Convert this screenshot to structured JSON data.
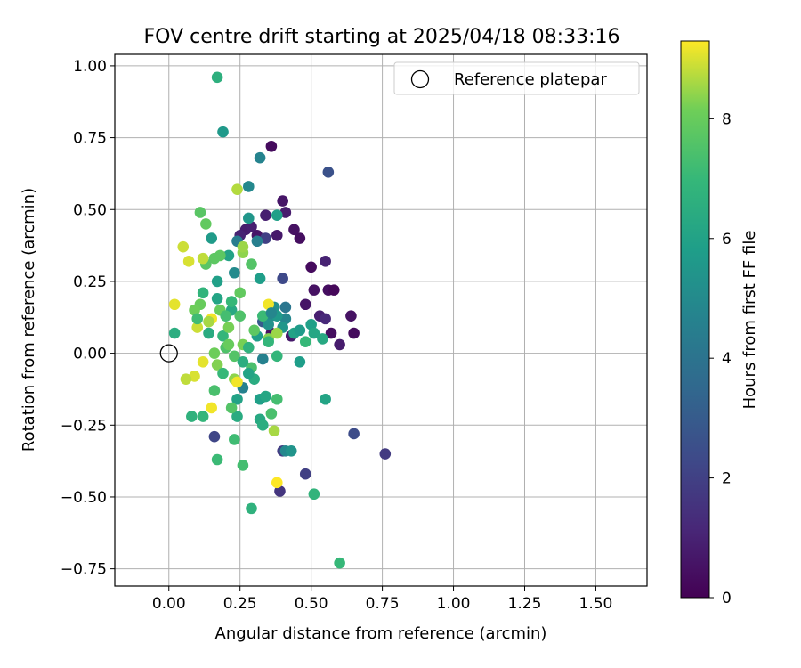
{
  "chart_data": {
    "type": "scatter",
    "title": "FOV centre drift starting at 2025/04/18 08:33:16",
    "xlabel": "Angular distance from reference (arcmin)",
    "ylabel": "Rotation from reference (arcmin)",
    "xlim": [
      -0.19,
      1.68
    ],
    "ylim": [
      -0.81,
      1.04
    ],
    "xticks": [
      0.0,
      0.25,
      0.5,
      0.75,
      1.0,
      1.25,
      1.5
    ],
    "xtick_labels": [
      "0.00",
      "0.25",
      "0.50",
      "0.75",
      "1.00",
      "1.25",
      "1.50"
    ],
    "yticks": [
      -0.75,
      -0.5,
      -0.25,
      0.0,
      0.25,
      0.5,
      0.75,
      1.0
    ],
    "ytick_labels": [
      "−0.75",
      "−0.50",
      "−0.25",
      "0.00",
      "0.25",
      "0.50",
      "0.75",
      "1.00"
    ],
    "grid": true,
    "legend": {
      "position": "top-right",
      "entries": [
        "Reference platepar"
      ]
    },
    "reference_point": {
      "x": 0.0,
      "y": 0.0,
      "label": "Reference platepar"
    },
    "colorbar": {
      "label": "Hours from first FF file",
      "colormap": "viridis",
      "range": [
        0,
        9.3
      ],
      "ticks": [
        0,
        2,
        4,
        6,
        8
      ],
      "tick_labels": [
        "0",
        "2",
        "4",
        "6",
        "8"
      ]
    },
    "series": [
      {
        "points": [
          [
            0.36,
            0.72,
            0.3
          ],
          [
            0.4,
            0.53,
            0.6
          ],
          [
            0.41,
            0.49,
            0.8
          ],
          [
            0.44,
            0.43,
            0.5
          ],
          [
            0.46,
            0.4,
            0.4
          ],
          [
            0.38,
            0.41,
            0.7
          ],
          [
            0.34,
            0.48,
            0.9
          ],
          [
            0.5,
            0.3,
            0.3
          ],
          [
            0.55,
            0.32,
            1.0
          ],
          [
            0.56,
            0.22,
            0.4
          ],
          [
            0.58,
            0.22,
            0.2
          ],
          [
            0.51,
            0.22,
            0.5
          ],
          [
            0.48,
            0.17,
            0.6
          ],
          [
            0.53,
            0.13,
            0.9
          ],
          [
            0.55,
            0.12,
            1.2
          ],
          [
            0.64,
            0.13,
            0.5
          ],
          [
            0.65,
            0.07,
            0.3
          ],
          [
            0.57,
            0.07,
            0.4
          ],
          [
            0.6,
            0.03,
            0.8
          ],
          [
            0.43,
            0.06,
            0.7
          ],
          [
            0.36,
            0.07,
            0.5
          ],
          [
            0.27,
            0.43,
            0.8
          ],
          [
            0.29,
            0.44,
            0.9
          ],
          [
            0.25,
            0.41,
            1.0
          ],
          [
            0.31,
            0.41,
            0.6
          ],
          [
            0.56,
            0.63,
            2.6
          ],
          [
            0.4,
            0.26,
            2.3
          ],
          [
            0.34,
            0.4,
            2.0
          ],
          [
            0.65,
            -0.28,
            2.4
          ],
          [
            0.76,
            -0.35,
            1.8
          ],
          [
            0.48,
            -0.42,
            2.0
          ],
          [
            0.39,
            -0.48,
            1.6
          ],
          [
            0.4,
            -0.34,
            1.9
          ],
          [
            0.16,
            -0.29,
            2.2
          ],
          [
            0.33,
            0.11,
            3.0
          ],
          [
            0.32,
            0.68,
            4.7
          ],
          [
            0.28,
            0.58,
            4.9
          ],
          [
            0.24,
            0.39,
            4.4
          ],
          [
            0.31,
            0.39,
            4.5
          ],
          [
            0.41,
            0.16,
            4.1
          ],
          [
            0.41,
            0.12,
            4.8
          ],
          [
            0.36,
            0.13,
            5.1
          ],
          [
            0.33,
            -0.02,
            4.6
          ],
          [
            0.41,
            -0.34,
            4.9
          ],
          [
            0.43,
            -0.34,
            5.4
          ],
          [
            0.26,
            -0.12,
            4.6
          ],
          [
            0.23,
            0.28,
            5.0
          ],
          [
            0.35,
            0.1,
            5.3
          ],
          [
            0.19,
            0.77,
            5.6
          ],
          [
            0.28,
            0.47,
            5.5
          ],
          [
            0.38,
            0.48,
            5.9
          ],
          [
            0.32,
            0.26,
            5.8
          ],
          [
            0.37,
            0.16,
            5.2
          ],
          [
            0.38,
            0.13,
            5.6
          ],
          [
            0.4,
            0.09,
            5.5
          ],
          [
            0.44,
            0.07,
            6.0
          ],
          [
            0.46,
            0.08,
            5.7
          ],
          [
            0.5,
            0.1,
            5.9
          ],
          [
            0.51,
            0.07,
            6.2
          ],
          [
            0.54,
            0.05,
            6.3
          ],
          [
            0.46,
            -0.03,
            5.8
          ],
          [
            0.55,
            -0.16,
            6.1
          ],
          [
            0.15,
            0.4,
            5.7
          ],
          [
            0.21,
            0.34,
            6.0
          ],
          [
            0.17,
            0.25,
            5.9
          ],
          [
            0.17,
            0.19,
            6.1
          ],
          [
            0.22,
            0.15,
            6.3
          ],
          [
            0.14,
            0.07,
            6.4
          ],
          [
            0.31,
            0.06,
            5.8
          ],
          [
            0.24,
            -0.16,
            6.0
          ],
          [
            0.32,
            -0.16,
            5.9
          ],
          [
            0.34,
            -0.15,
            6.2
          ],
          [
            0.24,
            -0.22,
            6.4
          ],
          [
            0.32,
            -0.23,
            6.3
          ],
          [
            0.33,
            -0.25,
            6.5
          ],
          [
            0.3,
            -0.09,
            6.4
          ],
          [
            0.38,
            -0.01,
            6.9
          ],
          [
            0.48,
            0.04,
            7.0
          ],
          [
            0.17,
            0.96,
            6.6
          ],
          [
            0.29,
            -0.54,
            6.7
          ],
          [
            0.51,
            -0.49,
            6.8
          ],
          [
            0.6,
            -0.73,
            7.0
          ],
          [
            0.12,
            0.21,
            6.8
          ],
          [
            0.19,
            0.06,
            6.9
          ],
          [
            0.08,
            -0.22,
            6.7
          ],
          [
            0.12,
            -0.22,
            6.9
          ],
          [
            0.17,
            -0.37,
            7.1
          ],
          [
            0.23,
            -0.3,
            7.2
          ],
          [
            0.26,
            -0.39,
            7.3
          ],
          [
            0.36,
            -0.21,
            7.4
          ],
          [
            0.38,
            -0.16,
            7.3
          ],
          [
            0.29,
            -0.05,
            7.4
          ],
          [
            0.23,
            -0.01,
            7.6
          ],
          [
            0.2,
            0.02,
            7.5
          ],
          [
            0.29,
            0.31,
            7.6
          ],
          [
            0.16,
            0.33,
            7.8
          ],
          [
            0.13,
            0.31,
            7.7
          ],
          [
            0.25,
            0.21,
            7.9
          ],
          [
            0.18,
            0.34,
            7.8
          ],
          [
            0.11,
            0.49,
            7.7
          ],
          [
            0.13,
            0.45,
            7.9
          ],
          [
            0.11,
            0.17,
            8.0
          ],
          [
            0.09,
            0.15,
            8.1
          ],
          [
            0.18,
            0.15,
            8.0
          ],
          [
            0.21,
            0.09,
            8.2
          ],
          [
            0.16,
            0.0,
            8.1
          ],
          [
            0.17,
            -0.04,
            8.3
          ],
          [
            0.26,
            0.03,
            8.2
          ],
          [
            0.23,
            -0.09,
            8.4
          ],
          [
            0.35,
            0.05,
            8.3
          ],
          [
            0.38,
            0.07,
            8.5
          ],
          [
            0.37,
            -0.27,
            8.6
          ],
          [
            0.26,
            0.35,
            8.4
          ],
          [
            0.26,
            0.37,
            8.5
          ],
          [
            0.24,
            0.57,
            8.7
          ],
          [
            0.12,
            0.33,
            8.8
          ],
          [
            0.05,
            0.37,
            8.9
          ],
          [
            0.07,
            0.32,
            9.0
          ],
          [
            0.02,
            0.17,
            9.1
          ],
          [
            0.15,
            0.12,
            9.2
          ],
          [
            0.1,
            0.09,
            8.9
          ],
          [
            0.09,
            -0.08,
            9.0
          ],
          [
            0.12,
            -0.03,
            9.1
          ],
          [
            0.06,
            -0.09,
            8.8
          ],
          [
            0.24,
            -0.1,
            9.2
          ],
          [
            0.15,
            -0.19,
            9.2
          ],
          [
            0.35,
            0.17,
            9.2
          ],
          [
            0.38,
            -0.45,
            9.3
          ],
          [
            0.22,
            0.18,
            7.0
          ],
          [
            0.2,
            0.13,
            7.3
          ],
          [
            0.25,
            0.13,
            7.5
          ],
          [
            0.28,
            0.02,
            6.7
          ],
          [
            0.3,
            0.08,
            7.8
          ],
          [
            0.33,
            0.13,
            7.1
          ],
          [
            0.19,
            -0.07,
            7.0
          ],
          [
            0.26,
            -0.03,
            6.5
          ],
          [
            0.1,
            0.12,
            7.2
          ],
          [
            0.16,
            -0.13,
            7.4
          ],
          [
            0.22,
            -0.19,
            7.6
          ],
          [
            0.02,
            0.07,
            6.5
          ],
          [
            0.36,
            0.14,
            4.8
          ],
          [
            0.35,
            0.04,
            6.9
          ],
          [
            0.21,
            0.03,
            8.0
          ],
          [
            0.14,
            0.11,
            8.6
          ],
          [
            0.28,
            -0.07,
            6.1
          ]
        ]
      }
    ]
  }
}
